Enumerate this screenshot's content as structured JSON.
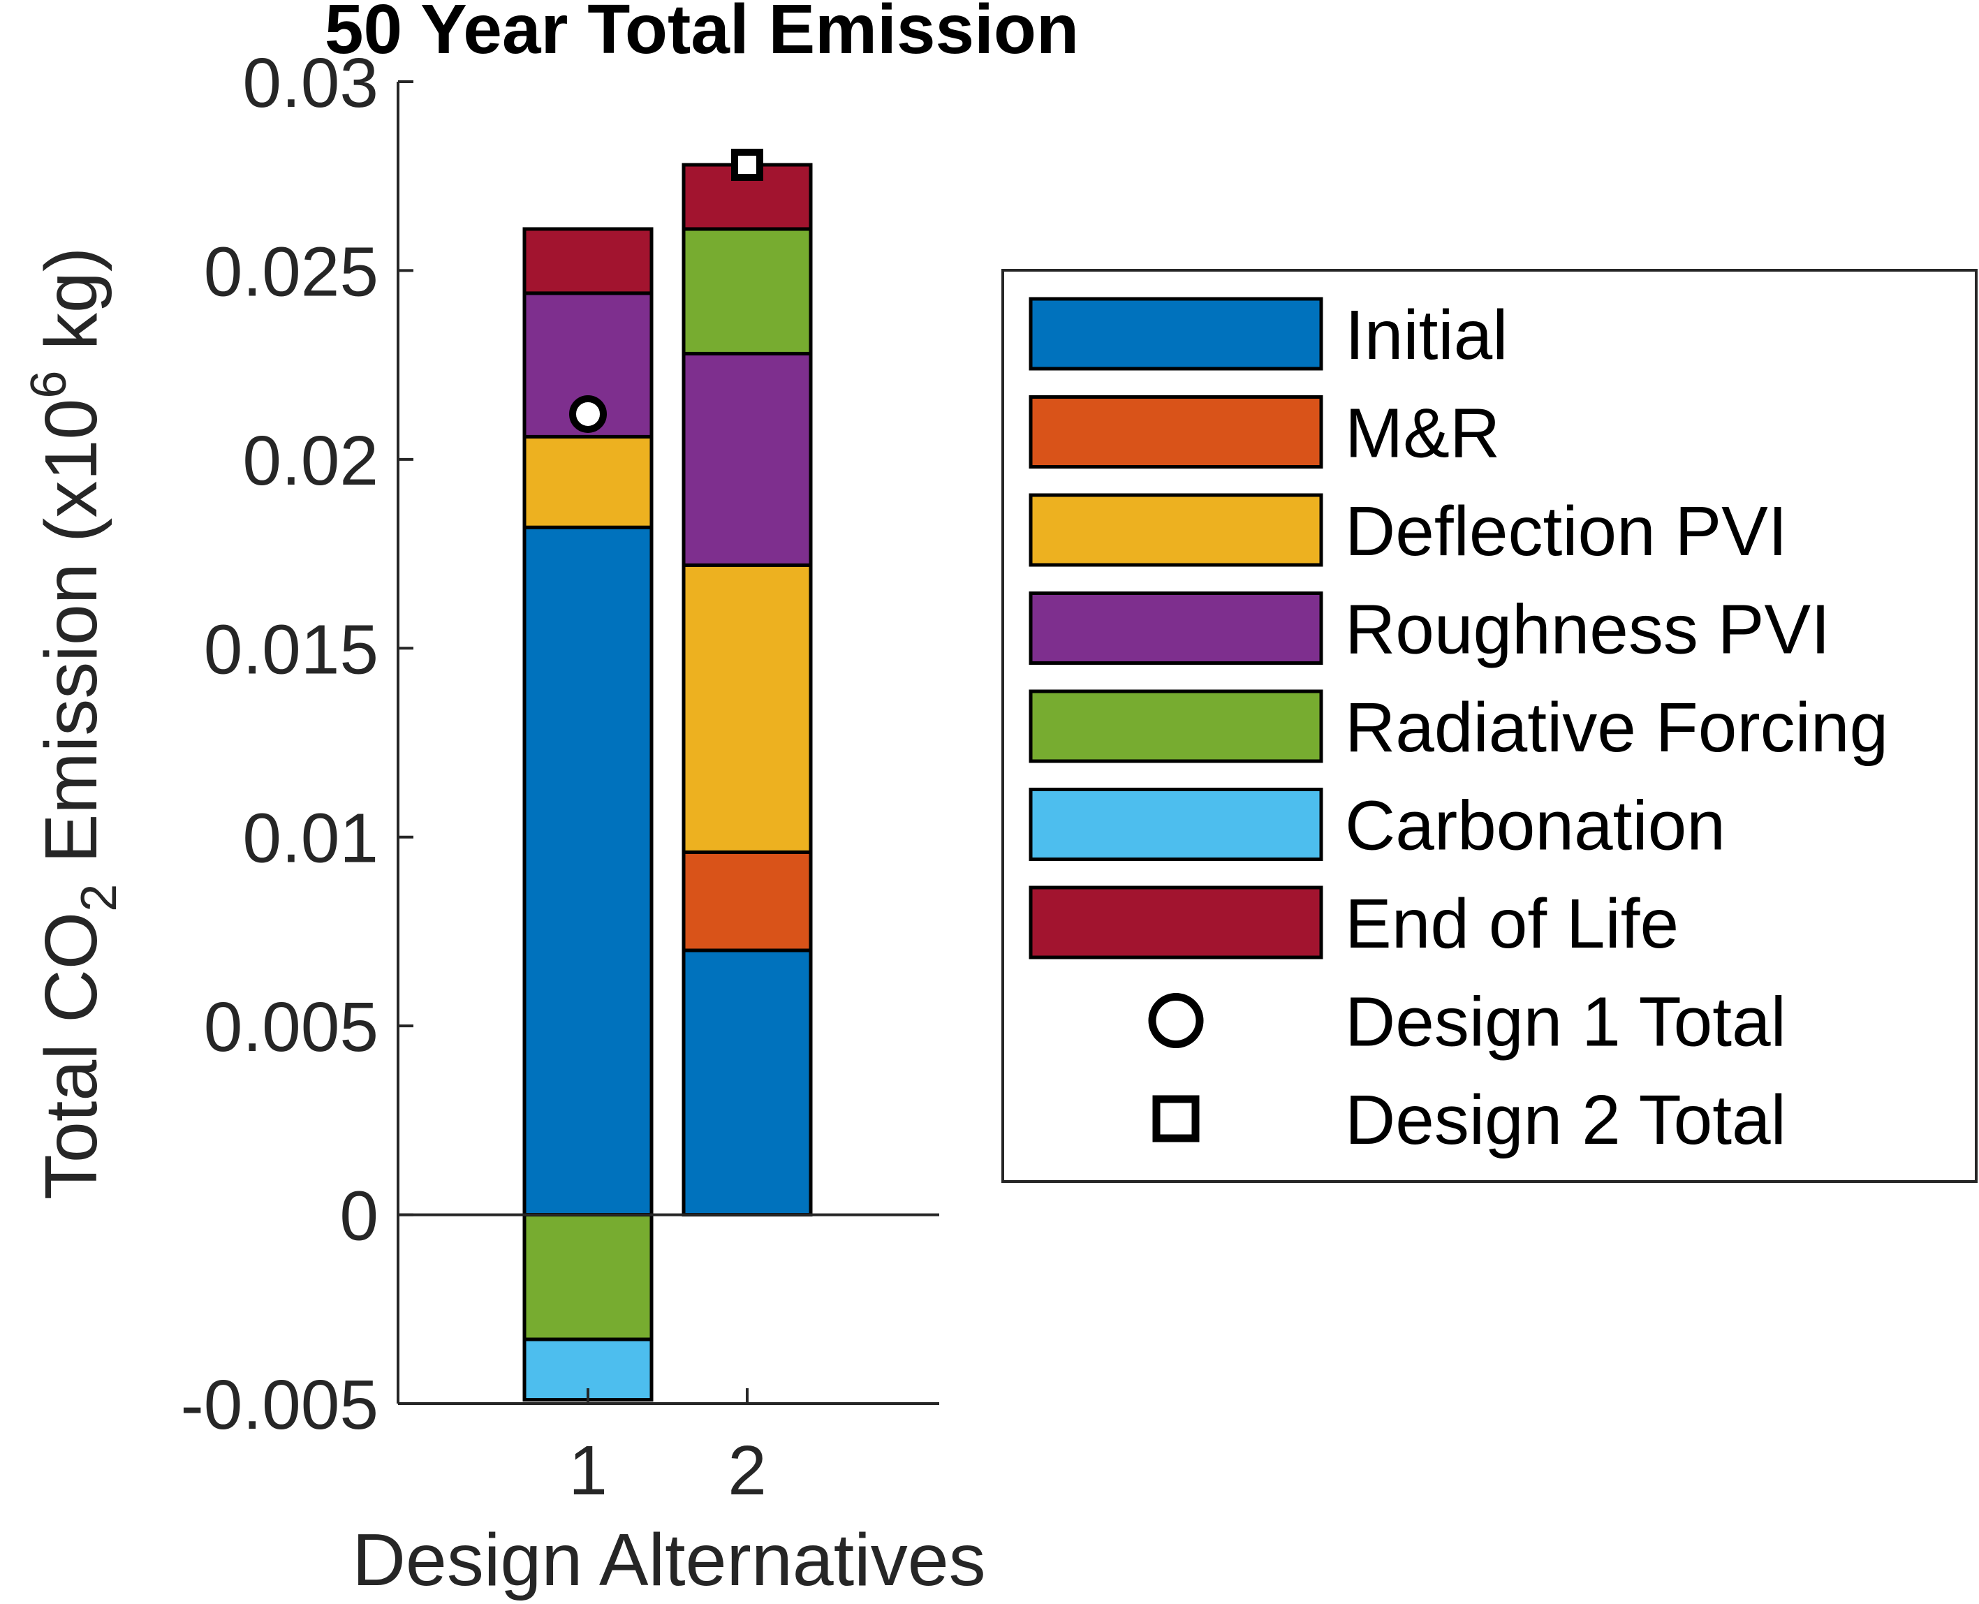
{
  "chart_data": {
    "type": "bar",
    "stacked": true,
    "title": "50 Year Total Emission",
    "xlabel": "Design Alternatives",
    "ylabel": {
      "prefix": "Total CO",
      "subscript": "2",
      "middle": " Emission (x10",
      "superscript": "6",
      "suffix": " kg)"
    },
    "categories": [
      "1",
      "2"
    ],
    "ylim": [
      -0.005,
      0.03
    ],
    "yticks": [
      "-0.005",
      "0",
      "0.005",
      "0.01",
      "0.015",
      "0.02",
      "0.025",
      "0.03"
    ],
    "ytick_values": [
      -0.005,
      0,
      0.005,
      0.01,
      0.015,
      0.02,
      0.025,
      0.03
    ],
    "series": [
      {
        "name": "Initial",
        "color": "#0072BD",
        "values": [
          0.0182,
          0.007
        ]
      },
      {
        "name": "M&R",
        "color": "#D95319",
        "values": [
          0.0,
          0.0026
        ]
      },
      {
        "name": "Deflection PVI",
        "color": "#EDB120",
        "values": [
          0.0024,
          0.0076
        ]
      },
      {
        "name": "Roughness PVI",
        "color": "#7E2F8E",
        "values": [
          0.0038,
          0.0056
        ]
      },
      {
        "name": "Radiative Forcing",
        "color": "#77AC30",
        "values": [
          -0.0033,
          0.0033
        ]
      },
      {
        "name": "Carbonation",
        "color": "#4DBEEE",
        "values": [
          -0.0016,
          0.0
        ]
      },
      {
        "name": "End of Life",
        "color": "#A2142F",
        "values": [
          0.0017,
          0.0017
        ]
      }
    ],
    "markers": [
      {
        "name": "Design 1 Total",
        "shape": "circle",
        "category": "1",
        "value": 0.0212
      },
      {
        "name": "Design 2 Total",
        "shape": "square",
        "category": "2",
        "value": 0.0278
      }
    ],
    "legend_position": "right",
    "grid": false
  }
}
